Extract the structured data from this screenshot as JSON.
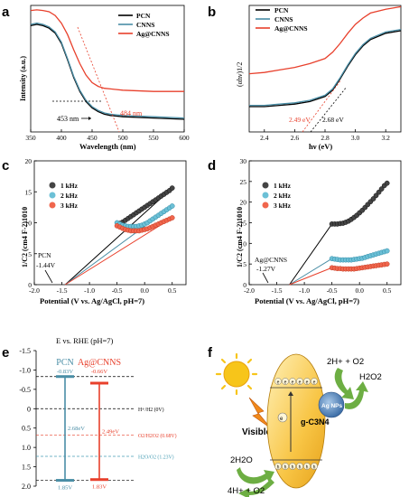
{
  "colors": {
    "pcn": "#000000",
    "cnns": "#4a8ea6",
    "agcnns": "#e8402c",
    "sun": "#f7c51a",
    "arrow": "#6dae43",
    "bandgap_fill": "#f7b63a"
  },
  "panels": {
    "a": "a",
    "b": "b",
    "c": "c",
    "d": "d",
    "e": "e",
    "f": "f"
  },
  "chart_data": [
    {
      "panel": "a",
      "type": "line",
      "xlabel": "Wavelength (nm)",
      "ylabel": "Intensity (a.u.)",
      "xlim": [
        350,
        600
      ],
      "ylim": [
        0,
        1
      ],
      "xticks": [
        "350",
        "400",
        "450",
        "500",
        "550",
        "600"
      ],
      "legend": [
        "PCN",
        "CNNS",
        "Ag@CNNS"
      ],
      "legend_position": "top-right",
      "annotations": [
        "453 nm",
        "484 nm"
      ],
      "series": [
        {
          "name": "PCN",
          "x": [
            350,
            360,
            370,
            380,
            390,
            400,
            410,
            420,
            430,
            440,
            450,
            460,
            470,
            480,
            500,
            550,
            600
          ],
          "y": [
            0.84,
            0.85,
            0.84,
            0.82,
            0.78,
            0.7,
            0.57,
            0.43,
            0.32,
            0.24,
            0.19,
            0.16,
            0.14,
            0.13,
            0.12,
            0.11,
            0.1
          ]
        },
        {
          "name": "CNNS",
          "x": [
            350,
            360,
            370,
            380,
            390,
            400,
            410,
            420,
            430,
            440,
            450,
            460,
            470,
            480,
            500,
            550,
            600
          ],
          "y": [
            0.85,
            0.86,
            0.85,
            0.83,
            0.79,
            0.71,
            0.58,
            0.44,
            0.33,
            0.25,
            0.2,
            0.17,
            0.15,
            0.14,
            0.13,
            0.12,
            0.11
          ]
        },
        {
          "name": "Ag@CNNS",
          "x": [
            350,
            360,
            370,
            380,
            390,
            400,
            410,
            420,
            430,
            440,
            450,
            460,
            470,
            480,
            500,
            550,
            600
          ],
          "y": [
            0.96,
            0.965,
            0.96,
            0.95,
            0.92,
            0.86,
            0.77,
            0.65,
            0.54,
            0.45,
            0.39,
            0.36,
            0.345,
            0.34,
            0.33,
            0.32,
            0.32
          ]
        }
      ]
    },
    {
      "panel": "b",
      "type": "line",
      "xlabel": "hν (eV)",
      "ylabel": "(αhν)1/2",
      "xlim": [
        2.3,
        3.3
      ],
      "ylim": [
        0,
        1
      ],
      "xticks": [
        "2.4",
        "2.6",
        "2.8",
        "3.0",
        "3.2"
      ],
      "legend": [
        "PCN",
        "CNNS",
        "Ag@CNNS"
      ],
      "legend_position": "top-left",
      "annotations": [
        "2.49 eV",
        "2.68 eV"
      ],
      "series": [
        {
          "name": "PCN",
          "x": [
            2.3,
            2.4,
            2.5,
            2.6,
            2.7,
            2.8,
            2.85,
            2.9,
            2.95,
            3.0,
            3.05,
            3.1,
            3.2,
            3.3
          ],
          "y": [
            0.2,
            0.2,
            0.21,
            0.22,
            0.24,
            0.28,
            0.33,
            0.42,
            0.52,
            0.61,
            0.68,
            0.73,
            0.78,
            0.8
          ]
        },
        {
          "name": "CNNS",
          "x": [
            2.3,
            2.4,
            2.5,
            2.6,
            2.7,
            2.8,
            2.85,
            2.9,
            2.95,
            3.0,
            3.05,
            3.1,
            3.2,
            3.3
          ],
          "y": [
            0.21,
            0.21,
            0.22,
            0.23,
            0.25,
            0.29,
            0.34,
            0.43,
            0.53,
            0.62,
            0.69,
            0.74,
            0.79,
            0.81
          ]
        },
        {
          "name": "Ag@CNNS",
          "x": [
            2.3,
            2.4,
            2.5,
            2.6,
            2.7,
            2.8,
            2.85,
            2.9,
            2.95,
            3.0,
            3.05,
            3.1,
            3.2,
            3.3
          ],
          "y": [
            0.46,
            0.47,
            0.49,
            0.51,
            0.54,
            0.58,
            0.63,
            0.7,
            0.78,
            0.85,
            0.9,
            0.94,
            0.97,
            0.99
          ]
        }
      ]
    },
    {
      "panel": "c",
      "type": "scatter",
      "xlabel": "Potential (V vs. Ag/AgCl, pH=7)",
      "ylabel": "1/C2 (cm4 F-2)1010",
      "xlim": [
        -2.0,
        0.75
      ],
      "ylim": [
        0,
        20
      ],
      "xticks": [
        "-2.0",
        "-1.5",
        "-1.0",
        "-0.5",
        "0.0",
        "0.5"
      ],
      "yticks": [
        "0",
        "5",
        "10",
        "15",
        "20"
      ],
      "legend": [
        "1 kHz",
        "2 kHz",
        "3 kHz"
      ],
      "legend_position": "top-left",
      "annotations": [
        "PCN",
        "-1.44V"
      ],
      "series": [
        {
          "name": "1 kHz",
          "x": [
            -0.45,
            -0.4,
            -0.35,
            -0.3,
            -0.25,
            -0.2,
            -0.15,
            -0.1,
            -0.05,
            0.0,
            0.05,
            0.1,
            0.15,
            0.2,
            0.25,
            0.3,
            0.35,
            0.4,
            0.45,
            0.5
          ],
          "y": [
            9.9,
            10.1,
            10.4,
            10.7,
            11.0,
            11.3,
            11.6,
            11.9,
            12.2,
            12.5,
            12.8,
            13.1,
            13.4,
            13.7,
            14.0,
            14.3,
            14.6,
            14.9,
            15.2,
            15.6
          ]
        },
        {
          "name": "2 kHz",
          "x": [
            -0.5,
            -0.45,
            -0.4,
            -0.35,
            -0.3,
            -0.25,
            -0.2,
            -0.15,
            -0.1,
            -0.05,
            0.0,
            0.05,
            0.1,
            0.15,
            0.2,
            0.25,
            0.3,
            0.35,
            0.4,
            0.45,
            0.5
          ],
          "y": [
            10.0,
            9.8,
            9.6,
            9.5,
            9.4,
            9.4,
            9.4,
            9.4,
            9.5,
            9.6,
            9.8,
            10.0,
            10.3,
            10.6,
            10.9,
            11.2,
            11.5,
            11.8,
            12.1,
            12.4,
            12.7
          ]
        },
        {
          "name": "3 kHz",
          "x": [
            -0.5,
            -0.45,
            -0.4,
            -0.35,
            -0.3,
            -0.25,
            -0.2,
            -0.15,
            -0.1,
            -0.05,
            0.0,
            0.05,
            0.1,
            0.15,
            0.2,
            0.25,
            0.3,
            0.35,
            0.4,
            0.45,
            0.5
          ],
          "y": [
            9.5,
            9.3,
            9.1,
            8.9,
            8.8,
            8.7,
            8.7,
            8.7,
            8.7,
            8.8,
            8.9,
            9.0,
            9.2,
            9.4,
            9.6,
            9.8,
            10.0,
            10.2,
            10.4,
            10.6,
            10.8
          ]
        }
      ],
      "fit_lines": [
        {
          "name": "1 kHz",
          "x": [
            -1.44,
            0.5
          ],
          "y": [
            0,
            15.6
          ]
        },
        {
          "name": "2 kHz",
          "x": [
            -1.44,
            0.5
          ],
          "y": [
            0,
            12.7
          ]
        },
        {
          "name": "3 kHz",
          "x": [
            -1.44,
            0.5
          ],
          "y": [
            0,
            10.8
          ]
        }
      ]
    },
    {
      "panel": "d",
      "type": "scatter",
      "xlabel": "Potential (V vs. Ag/AgCl, pH=7)",
      "ylabel": "1/C2 (cm4 F-2)1010",
      "xlim": [
        -2.0,
        0.75
      ],
      "ylim": [
        0,
        30
      ],
      "xticks": [
        "-2.0",
        "-1.5",
        "-1.0",
        "-0.5",
        "0.0",
        "0.5"
      ],
      "yticks": [
        "0",
        "5",
        "10",
        "15",
        "20",
        "25",
        "30"
      ],
      "legend": [
        "1 kHz",
        "2 kHz",
        "3 kHz"
      ],
      "legend_position": "top-left",
      "annotations": [
        "Ag@CNNS",
        "-1.27V"
      ],
      "series": [
        {
          "name": "1 kHz",
          "x": [
            -0.5,
            -0.45,
            -0.4,
            -0.35,
            -0.3,
            -0.25,
            -0.2,
            -0.15,
            -0.1,
            -0.05,
            0.0,
            0.05,
            0.1,
            0.15,
            0.2,
            0.25,
            0.3,
            0.35,
            0.4,
            0.45,
            0.5
          ],
          "y": [
            14.7,
            14.7,
            14.7,
            14.8,
            14.9,
            15.1,
            15.4,
            15.8,
            16.3,
            16.8,
            17.4,
            18.0,
            18.7,
            19.4,
            20.1,
            20.8,
            21.6,
            22.4,
            23.2,
            24.0,
            24.6
          ]
        },
        {
          "name": "2 kHz",
          "x": [
            -0.5,
            -0.45,
            -0.4,
            -0.35,
            -0.3,
            -0.25,
            -0.2,
            -0.15,
            -0.1,
            -0.05,
            0.0,
            0.05,
            0.1,
            0.15,
            0.2,
            0.25,
            0.3,
            0.35,
            0.4,
            0.45,
            0.5
          ],
          "y": [
            6.3,
            6.2,
            6.1,
            6.0,
            6.0,
            6.0,
            6.0,
            6.0,
            6.1,
            6.2,
            6.3,
            6.4,
            6.6,
            6.8,
            7.0,
            7.2,
            7.4,
            7.6,
            7.8,
            8.0,
            8.2
          ]
        },
        {
          "name": "3 kHz",
          "x": [
            -0.5,
            -0.45,
            -0.4,
            -0.35,
            -0.3,
            -0.25,
            -0.2,
            -0.15,
            -0.1,
            -0.05,
            0.0,
            0.05,
            0.1,
            0.15,
            0.2,
            0.25,
            0.3,
            0.35,
            0.4,
            0.45,
            0.5
          ],
          "y": [
            4.1,
            4.0,
            3.9,
            3.9,
            3.8,
            3.8,
            3.8,
            3.8,
            3.8,
            3.9,
            4.0,
            4.1,
            4.2,
            4.3,
            4.4,
            4.5,
            4.6,
            4.7,
            4.8,
            4.9,
            5.0
          ]
        }
      ],
      "fit_lines": [
        {
          "name": "1 kHz",
          "x": [
            -1.27,
            -0.5
          ],
          "y": [
            0,
            14.7
          ]
        },
        {
          "name": "2 kHz",
          "x": [
            -1.27,
            -0.5
          ],
          "y": [
            0,
            6.3
          ]
        },
        {
          "name": "3 kHz",
          "x": [
            -1.27,
            -0.5
          ],
          "y": [
            0,
            4.1
          ]
        }
      ]
    },
    {
      "panel": "e",
      "type": "bar",
      "ylabel": "E vs. RHE (pH=7)",
      "ylim": [
        -1.5,
        2.0
      ],
      "yticks": [
        "-1.5",
        "-1.0",
        "-0.5",
        "0",
        "0.5",
        "1.0",
        "1.5",
        "2.0"
      ],
      "categories": [
        "PCN",
        "Ag@CNNS"
      ],
      "cb": [
        -0.83,
        -0.66
      ],
      "vb": [
        1.85,
        1.83
      ],
      "bandgaps": [
        "2.68eV",
        "2.49eV"
      ],
      "cb_labels": [
        "-0.83V",
        "-0.66V"
      ],
      "vb_labels": [
        "1.85V",
        "1.83V"
      ],
      "reference_levels": [
        {
          "label": "H+/H2 (0V)",
          "value": 0.0
        },
        {
          "label": "O2/H2O2 (0.68V)",
          "value": 0.68
        },
        {
          "label": "H2O/O2 (1.23V)",
          "value": 1.23
        }
      ]
    }
  ],
  "panel_f": {
    "top_reaction_1": "2H+ + O2",
    "top_reaction_2": "H2O2",
    "ag_label": "Ag NPs",
    "catalyst": "g-C3N4",
    "light_label": "Visible light",
    "water": "2H2O",
    "bottom_product": "4H+ + O2",
    "electron": "e",
    "hole": "h"
  }
}
